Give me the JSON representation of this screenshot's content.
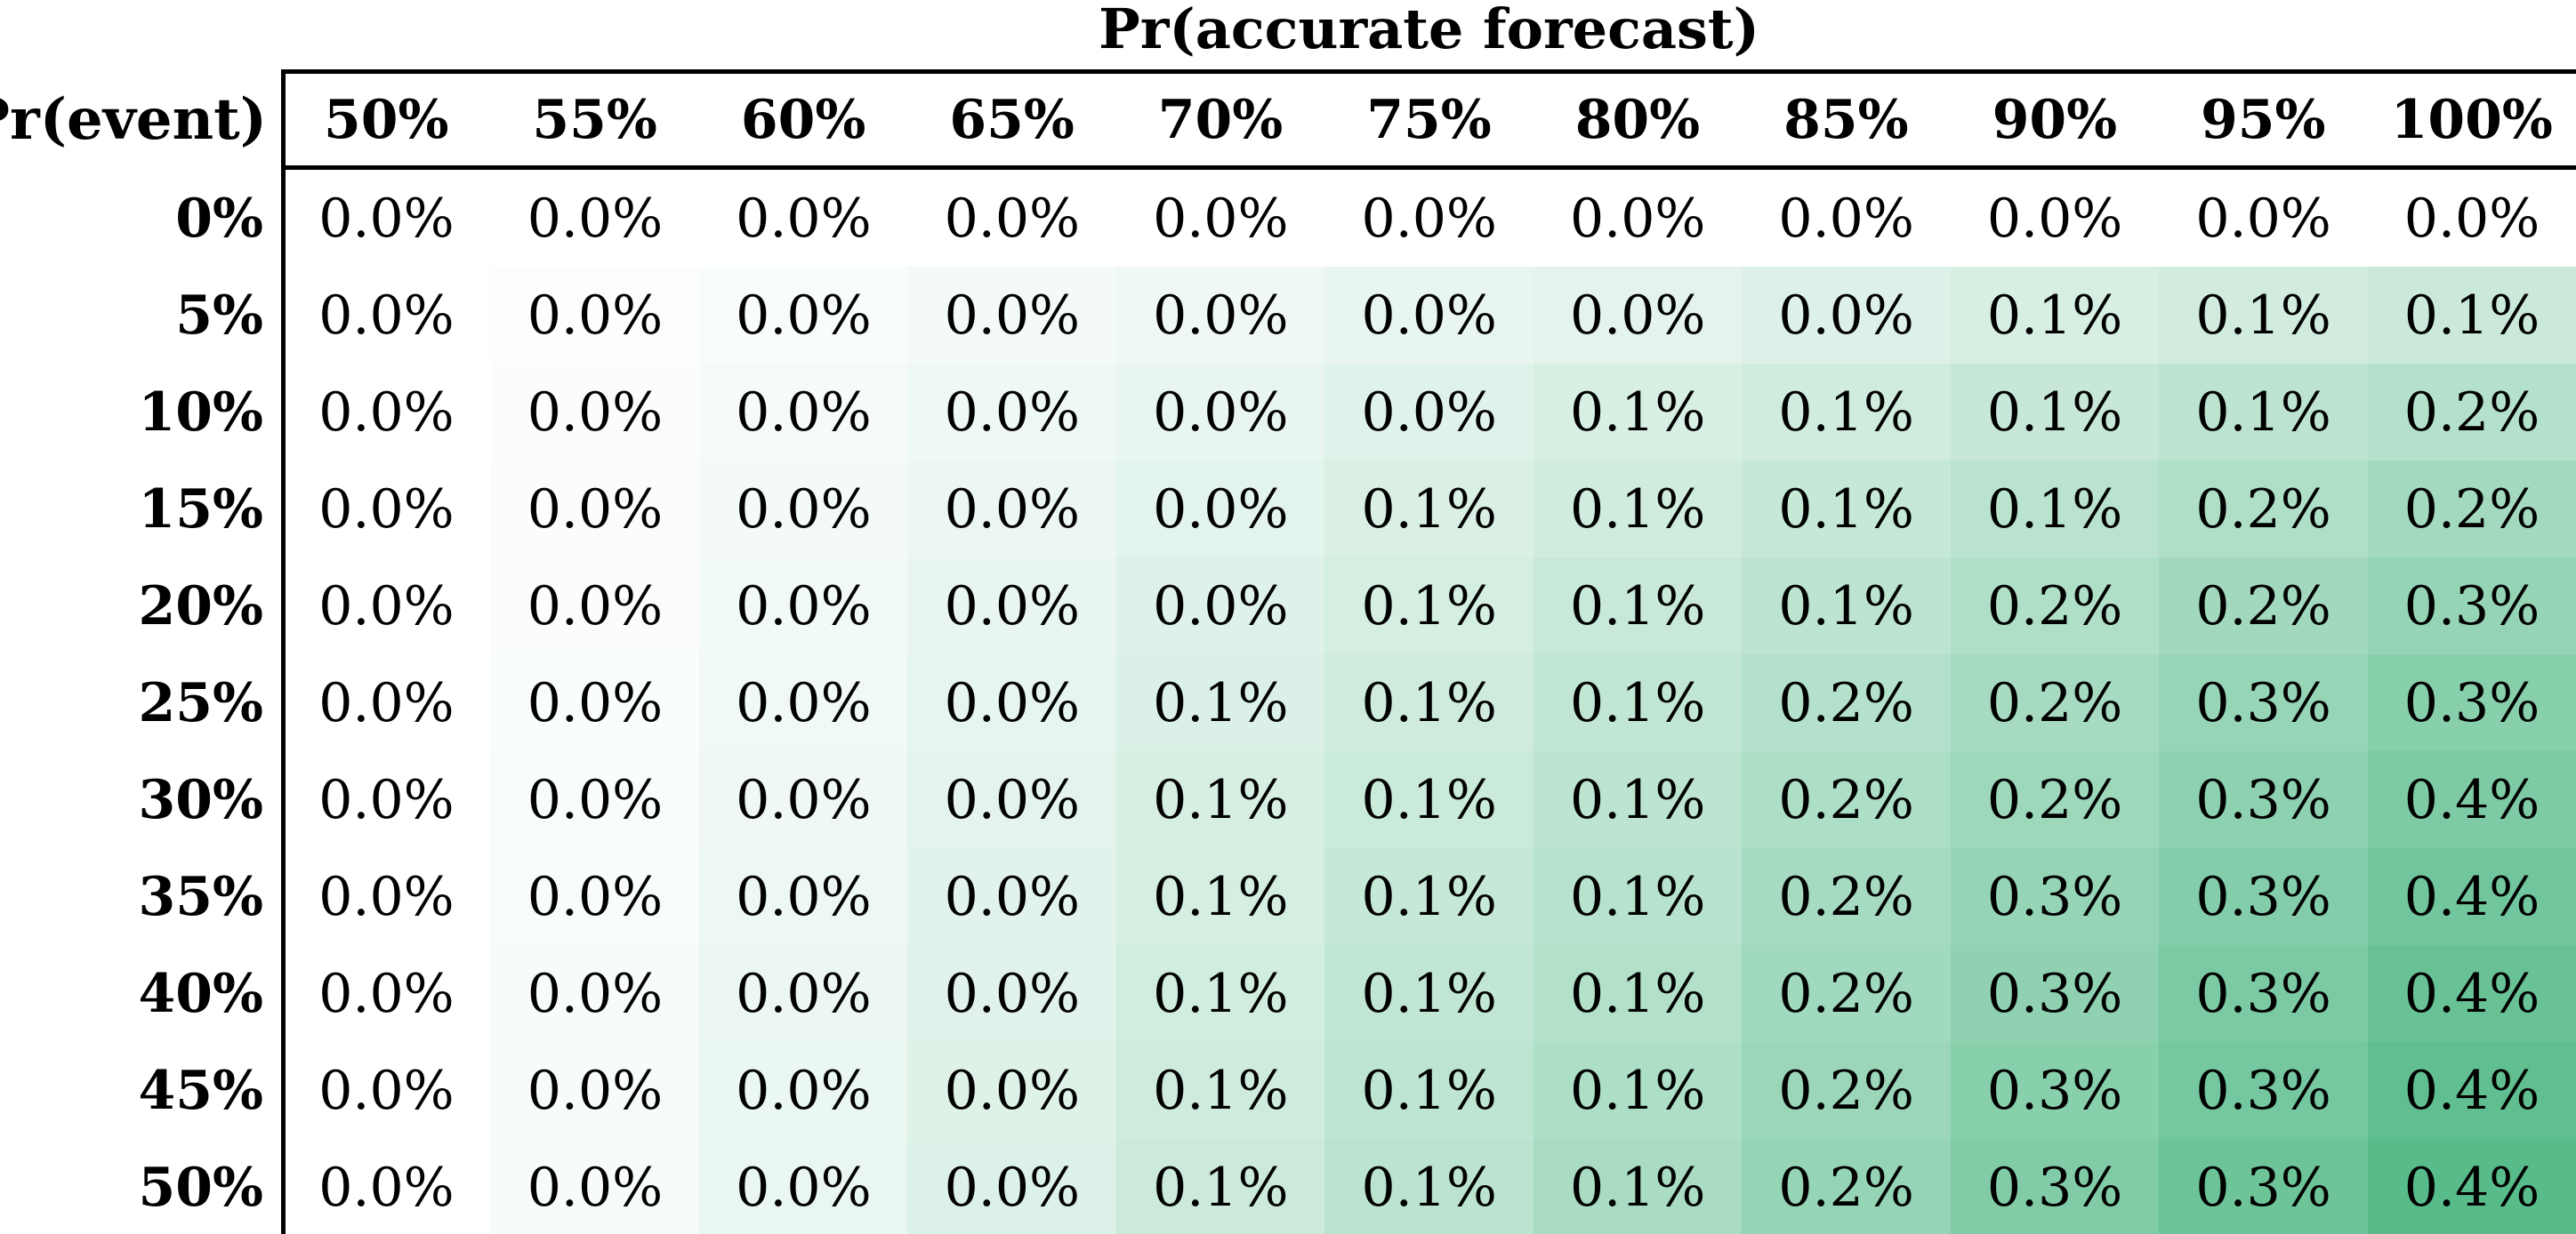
{
  "chart_data": {
    "type": "heatmap",
    "title": "Pr(accurate forecast)",
    "row_axis_label": "Pr(event)",
    "columns": [
      "50%",
      "55%",
      "60%",
      "65%",
      "70%",
      "75%",
      "80%",
      "85%",
      "90%",
      "95%",
      "100%"
    ],
    "rows": [
      "0%",
      "5%",
      "10%",
      "15%",
      "20%",
      "25%",
      "30%",
      "35%",
      "40%",
      "45%",
      "50%"
    ],
    "values": [
      [
        "0.0%",
        "0.0%",
        "0.0%",
        "0.0%",
        "0.0%",
        "0.0%",
        "0.0%",
        "0.0%",
        "0.0%",
        "0.0%",
        "0.0%"
      ],
      [
        "0.0%",
        "0.0%",
        "0.0%",
        "0.0%",
        "0.0%",
        "0.0%",
        "0.0%",
        "0.0%",
        "0.1%",
        "0.1%",
        "0.1%"
      ],
      [
        "0.0%",
        "0.0%",
        "0.0%",
        "0.0%",
        "0.0%",
        "0.0%",
        "0.1%",
        "0.1%",
        "0.1%",
        "0.1%",
        "0.2%"
      ],
      [
        "0.0%",
        "0.0%",
        "0.0%",
        "0.0%",
        "0.0%",
        "0.1%",
        "0.1%",
        "0.1%",
        "0.1%",
        "0.2%",
        "0.2%"
      ],
      [
        "0.0%",
        "0.0%",
        "0.0%",
        "0.0%",
        "0.0%",
        "0.1%",
        "0.1%",
        "0.1%",
        "0.2%",
        "0.2%",
        "0.3%"
      ],
      [
        "0.0%",
        "0.0%",
        "0.0%",
        "0.0%",
        "0.1%",
        "0.1%",
        "0.1%",
        "0.2%",
        "0.2%",
        "0.3%",
        "0.3%"
      ],
      [
        "0.0%",
        "0.0%",
        "0.0%",
        "0.0%",
        "0.1%",
        "0.1%",
        "0.1%",
        "0.2%",
        "0.2%",
        "0.3%",
        "0.4%"
      ],
      [
        "0.0%",
        "0.0%",
        "0.0%",
        "0.0%",
        "0.1%",
        "0.1%",
        "0.1%",
        "0.2%",
        "0.3%",
        "0.3%",
        "0.4%"
      ],
      [
        "0.0%",
        "0.0%",
        "0.0%",
        "0.0%",
        "0.1%",
        "0.1%",
        "0.1%",
        "0.2%",
        "0.3%",
        "0.3%",
        "0.4%"
      ],
      [
        "0.0%",
        "0.0%",
        "0.0%",
        "0.0%",
        "0.1%",
        "0.1%",
        "0.1%",
        "0.2%",
        "0.3%",
        "0.3%",
        "0.4%"
      ],
      [
        "0.0%",
        "0.0%",
        "0.0%",
        "0.0%",
        "0.1%",
        "0.1%",
        "0.1%",
        "0.2%",
        "0.3%",
        "0.3%",
        "0.4%"
      ]
    ],
    "color_scale": {
      "low": "#ffffff",
      "high": "#57bb8a"
    }
  }
}
